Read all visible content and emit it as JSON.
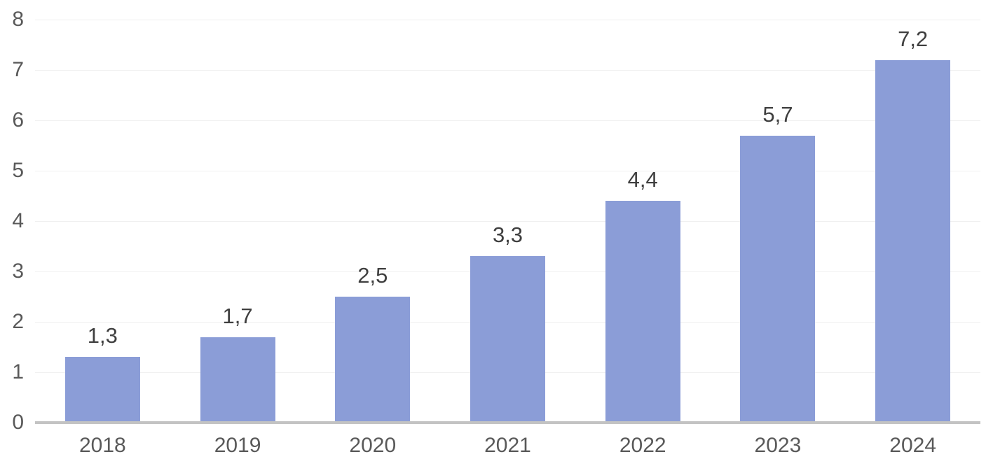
{
  "chart_data": {
    "type": "bar",
    "title": "",
    "xlabel": "",
    "ylabel": "",
    "categories": [
      "2018",
      "2019",
      "2020",
      "2021",
      "2022",
      "2023",
      "2024"
    ],
    "values": [
      1.3,
      1.7,
      2.5,
      3.3,
      4.4,
      5.7,
      7.2
    ],
    "value_labels": [
      "1,3",
      "1,7",
      "2,5",
      "3,3",
      "4,4",
      "5,7",
      "7,2"
    ],
    "y_ticks": [
      0,
      1,
      2,
      3,
      4,
      5,
      6,
      7,
      8
    ],
    "ylim": [
      0,
      8
    ],
    "grid": "horizontal",
    "legend": "none",
    "decimal_separator": ",",
    "colors": {
      "bar_fill": "#8b9dd7",
      "gridline": "#f0f0f0",
      "axis_line": "#c3c3c3",
      "tick_label": "#595959",
      "data_label": "#3f3f3f"
    }
  }
}
